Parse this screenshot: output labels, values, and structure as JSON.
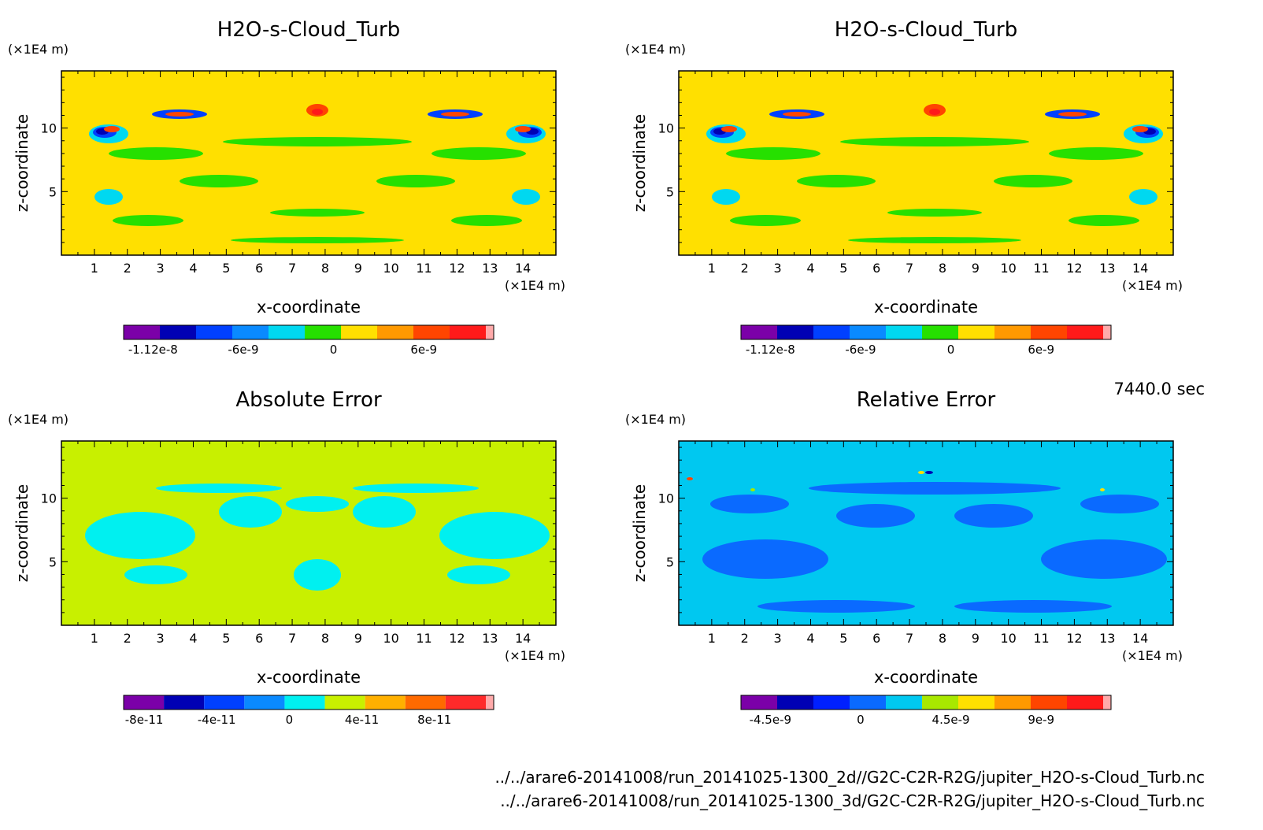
{
  "time_label": "7440.0 sec",
  "file_paths": [
    "../../arare6-20141008/run_20141025-1300_2d//G2C-C2R-R2G/jupiter_H2O-s-Cloud_Turb.nc",
    "../../arare6-20141008/run_20141025-1300_3d/G2C-C2R-R2G/jupiter_H2O-s-Cloud_Turb.nc"
  ],
  "chart_data": [
    {
      "type": "heatmap",
      "title": "H2O-s-Cloud_Turb",
      "xlabel": "x-coordinate",
      "ylabel": "z-coordinate",
      "x_unit": "(×1E4 m)",
      "y_unit": "(×1E4 m)",
      "xlim": [
        0,
        15
      ],
      "ylim": [
        0,
        14.5
      ],
      "x_ticks": [
        1,
        2,
        3,
        4,
        5,
        6,
        7,
        8,
        9,
        10,
        11,
        12,
        13,
        14
      ],
      "y_ticks": [
        5,
        10
      ],
      "background": "#ffe000",
      "colorbar": {
        "colors": [
          "#7b00a8",
          "#0000b4",
          "#0040ff",
          "#0a8aff",
          "#00d8f0",
          "#26e000",
          "#ffe000",
          "#ff9900",
          "#ff4500",
          "#ff1a1a",
          "#ffaaaa"
        ],
        "labels": [
          "-1.12e-8",
          "-6e-9",
          "0",
          "6e-9"
        ]
      }
    },
    {
      "type": "heatmap",
      "title": "H2O-s-Cloud_Turb",
      "xlabel": "x-coordinate",
      "ylabel": "z-coordinate",
      "x_unit": "(×1E4 m)",
      "y_unit": "(×1E4 m)",
      "xlim": [
        0,
        15
      ],
      "ylim": [
        0,
        14.5
      ],
      "x_ticks": [
        1,
        2,
        3,
        4,
        5,
        6,
        7,
        8,
        9,
        10,
        11,
        12,
        13,
        14
      ],
      "y_ticks": [
        5,
        10
      ],
      "background": "#ffe000",
      "colorbar": {
        "colors": [
          "#7b00a8",
          "#0000b4",
          "#0040ff",
          "#0a8aff",
          "#00d8f0",
          "#26e000",
          "#ffe000",
          "#ff9900",
          "#ff4500",
          "#ff1a1a",
          "#ffaaaa"
        ],
        "labels": [
          "-1.12e-8",
          "-6e-9",
          "0",
          "6e-9"
        ]
      }
    },
    {
      "type": "heatmap",
      "title": "Absolute Error",
      "xlabel": "x-coordinate",
      "ylabel": "z-coordinate",
      "x_unit": "(×1E4 m)",
      "y_unit": "(×1E4 m)",
      "xlim": [
        0,
        15
      ],
      "ylim": [
        0,
        14.5
      ],
      "x_ticks": [
        1,
        2,
        3,
        4,
        5,
        6,
        7,
        8,
        9,
        10,
        11,
        12,
        13,
        14
      ],
      "y_ticks": [
        5,
        10
      ],
      "background": "#c8f000",
      "colorbar": {
        "colors": [
          "#7b00a8",
          "#0000b4",
          "#0040ff",
          "#0a8aff",
          "#00f0f0",
          "#c8f000",
          "#ffb000",
          "#ff6a00",
          "#ff2a2a",
          "#ffaaaa"
        ],
        "labels": [
          "-8e-11",
          "-4e-11",
          "0",
          "4e-11",
          "8e-11"
        ]
      }
    },
    {
      "type": "heatmap",
      "title": "Relative Error",
      "xlabel": "x-coordinate",
      "ylabel": "z-coordinate",
      "x_unit": "(×1E4 m)",
      "y_unit": "(×1E4 m)",
      "xlim": [
        0,
        15
      ],
      "ylim": [
        0,
        14.5
      ],
      "x_ticks": [
        1,
        2,
        3,
        4,
        5,
        6,
        7,
        8,
        9,
        10,
        11,
        12,
        13,
        14
      ],
      "y_ticks": [
        5,
        10
      ],
      "background": "#00c8f0",
      "colorbar": {
        "colors": [
          "#7b00a8",
          "#0000b4",
          "#0020ff",
          "#0a6aff",
          "#00c8f0",
          "#a8e800",
          "#ffe000",
          "#ff9900",
          "#ff4500",
          "#ff1a1a",
          "#ffaaaa"
        ],
        "labels": [
          "-4.5e-9",
          "0",
          "4.5e-9",
          "9e-9"
        ]
      }
    }
  ]
}
